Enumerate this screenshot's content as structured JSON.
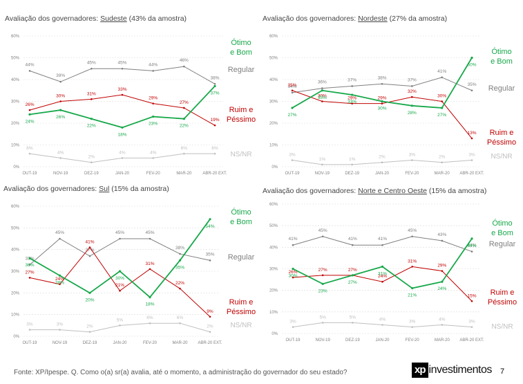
{
  "footer": {
    "source": "Fonte: XP/Ipespe. Q. Como o(a) sr(a) avalia, até o momento, a administração do governador do seu estado?",
    "logo_mark": "xp",
    "logo_text": "investimentos",
    "page_number": "7"
  },
  "colors": {
    "otimo": "#17a84a",
    "regular": "#7f7f7f",
    "ruim": "#c00000",
    "ns": "#bfbfbf"
  },
  "chart_data": [
    {
      "type": "line",
      "title_prefix": "Avaliação dos governadores: ",
      "region": "Sudeste",
      "title_suffix": " (43% da amostra)",
      "categories": [
        "OUT-19",
        "NOV-19",
        "DEZ-19",
        "JAN-20",
        "FEV-20",
        "MAR-20",
        "ABR-20 EXT."
      ],
      "yticks": [
        "0%",
        "10%",
        "20%",
        "30%",
        "40%",
        "50%",
        "60%"
      ],
      "ylim": [
        0,
        60
      ],
      "series": [
        {
          "key": "regular",
          "values": [
            44,
            39,
            45,
            45,
            44,
            46,
            38
          ],
          "labels": [
            "44%",
            "39%",
            "45%",
            "45%",
            "44%",
            "46%",
            "38%"
          ]
        },
        {
          "key": "ruim",
          "values": [
            26,
            30,
            31,
            33,
            29,
            27,
            19
          ],
          "labels": [
            "26%",
            "30%",
            "31%",
            "33%",
            "29%",
            "27%",
            "19%"
          ]
        },
        {
          "key": "otimo",
          "values": [
            24,
            26,
            22,
            18,
            23,
            22,
            37
          ],
          "labels": [
            "24%",
            "26%",
            "22%",
            "18%",
            "23%",
            "22%",
            "37%"
          ]
        },
        {
          "key": "ns",
          "values": [
            6,
            4,
            2,
            4,
            4,
            6,
            6
          ],
          "labels": [
            "6%",
            "4%",
            "2%",
            "4%",
            "4%",
            "6%",
            "6%"
          ]
        }
      ],
      "legend": [
        {
          "key": "otimo",
          "lines": [
            "Ótimo",
            "e Bom"
          ]
        },
        {
          "key": "regular",
          "lines": [
            "Regular"
          ]
        },
        {
          "key": "ruim",
          "lines": [
            "Ruim e",
            "Péssimo"
          ]
        },
        {
          "key": "ns",
          "lines": [
            "NS/NR"
          ]
        }
      ]
    },
    {
      "type": "line",
      "title_prefix": "Avaliação dos governadores: ",
      "region": "Nordeste",
      "title_suffix": " (27% da amostra)",
      "categories": [
        "OUT-19",
        "NOV-19",
        "DEZ-19",
        "JAN-20",
        "FEV-20",
        "MAR-20",
        "ABR-20 EXT."
      ],
      "yticks": [
        "0%",
        "10%",
        "20%",
        "30%",
        "40%",
        "50%",
        "60%"
      ],
      "ylim": [
        0,
        60
      ],
      "series": [
        {
          "key": "regular",
          "values": [
            34,
            36,
            37,
            38,
            37,
            41,
            35
          ],
          "labels": [
            "34%",
            "36%",
            "37%",
            "38%",
            "37%",
            "41%",
            "35%"
          ]
        },
        {
          "key": "ruim",
          "values": [
            35,
            30,
            29,
            29,
            32,
            30,
            13
          ],
          "labels": [
            "35%",
            "30%",
            "29%",
            "29%",
            "32%",
            "30%",
            "13%"
          ]
        },
        {
          "key": "otimo",
          "values": [
            27,
            35,
            33,
            30,
            28,
            27,
            50
          ],
          "labels": [
            "27%",
            "35%",
            "33%",
            "30%",
            "28%",
            "27%",
            "50%"
          ]
        },
        {
          "key": "ns",
          "values": [
            3,
            1,
            1,
            2,
            3,
            2,
            3
          ],
          "labels": [
            "3%",
            "1%",
            "1%",
            "2%",
            "3%",
            "2%",
            "3%"
          ]
        }
      ],
      "legend": [
        {
          "key": "otimo",
          "lines": [
            "Ótimo",
            "e Bom"
          ]
        },
        {
          "key": "regular",
          "lines": [
            "Regular"
          ]
        },
        {
          "key": "ruim",
          "lines": [
            "Ruim e",
            "Péssimo"
          ]
        },
        {
          "key": "ns",
          "lines": [
            "NS/NR"
          ]
        }
      ]
    },
    {
      "type": "line",
      "title_prefix": "Avaliação dos governadores: ",
      "region": "Sul",
      "title_suffix": " (15% da amostra)",
      "categories": [
        "OUT-19",
        "NOV-19",
        "DEZ-19",
        "JAN-20",
        "FEV-20",
        "MAR-20",
        "ABR-20 EXT."
      ],
      "yticks": [
        "0%",
        "10%",
        "20%",
        "30%",
        "40%",
        "50%",
        "60%"
      ],
      "ylim": [
        0,
        60
      ],
      "series": [
        {
          "key": "regular",
          "values": [
            33,
            45,
            37,
            45,
            45,
            38,
            35
          ],
          "labels": [
            "33%",
            "45%",
            "37%",
            "45%",
            "45%",
            "38%",
            "35%"
          ]
        },
        {
          "key": "ruim",
          "values": [
            27,
            24,
            41,
            21,
            31,
            22,
            9
          ],
          "labels": [
            "27%",
            "24%",
            "41%",
            "21%",
            "31%",
            "22%",
            "9%"
          ]
        },
        {
          "key": "otimo",
          "values": [
            36,
            28,
            20,
            30,
            18,
            35,
            54
          ],
          "labels": [
            "36%",
            "28%",
            "20%",
            "30%",
            "18%",
            "35%",
            "54%"
          ]
        },
        {
          "key": "ns",
          "values": [
            3,
            3,
            2,
            5,
            6,
            6,
            2
          ],
          "labels": [
            "3%",
            "3%",
            "2%",
            "5%",
            "6%",
            "6%",
            "2%"
          ]
        }
      ],
      "legend": [
        {
          "key": "otimo",
          "lines": [
            "Ótimo",
            "e Bom"
          ]
        },
        {
          "key": "regular",
          "lines": [
            "Regular"
          ]
        },
        {
          "key": "ruim",
          "lines": [
            "Ruim e",
            "Péssimo"
          ]
        },
        {
          "key": "ns",
          "lines": [
            "NS/NR"
          ]
        }
      ]
    },
    {
      "type": "line",
      "title_prefix": "Avaliação dos governadores: ",
      "region": "Norte e Centro Oeste",
      "title_suffix": " (15% da amostra)",
      "categories": [
        "OUT-19",
        "NOV-19",
        "DEZ-19",
        "JAN-20",
        "FEV-20",
        "MAR-20",
        "ABR-20 EXT."
      ],
      "yticks": [
        "0%",
        "10%",
        "20%",
        "30%",
        "40%",
        "50%",
        "60%"
      ],
      "ylim": [
        0,
        60
      ],
      "series": [
        {
          "key": "regular",
          "values": [
            41,
            45,
            41,
            41,
            45,
            43,
            38
          ],
          "labels": [
            "41%",
            "45%",
            "41%",
            "41%",
            "45%",
            "43%",
            "38%"
          ]
        },
        {
          "key": "ruim",
          "values": [
            26,
            27,
            27,
            24,
            31,
            29,
            15
          ],
          "labels": [
            "26%",
            "27%",
            "27%",
            "24%",
            "31%",
            "29%",
            "15%"
          ]
        },
        {
          "key": "otimo",
          "values": [
            30,
            23,
            27,
            31,
            21,
            24,
            44
          ],
          "labels": [
            "30%",
            "23%",
            "27%",
            "31%",
            "21%",
            "24%",
            "44%"
          ]
        },
        {
          "key": "ns",
          "values": [
            3,
            5,
            5,
            4,
            3,
            4,
            3
          ],
          "labels": [
            "3%",
            "5%",
            "5%",
            "4%",
            "3%",
            "4%",
            "3%"
          ]
        }
      ],
      "legend": [
        {
          "key": "otimo",
          "lines": [
            "Ótimo",
            "e Bom"
          ]
        },
        {
          "key": "regular",
          "lines": [
            "Regular"
          ]
        },
        {
          "key": "ruim",
          "lines": [
            "Ruim e",
            "Péssimo"
          ]
        },
        {
          "key": "ns",
          "lines": [
            "NS/NR"
          ]
        }
      ]
    }
  ]
}
